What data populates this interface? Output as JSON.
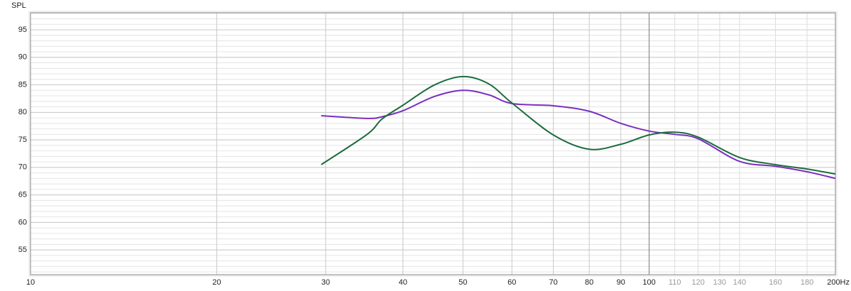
{
  "chart_data": {
    "type": "line",
    "y_label": "SPL",
    "x_scale": "log",
    "grid": true,
    "xlim": [
      10,
      200
    ],
    "ylim": [
      50.5,
      98.1
    ],
    "yticks": [
      55,
      60,
      65,
      70,
      75,
      80,
      85,
      90,
      95
    ],
    "xticks": [
      10,
      20,
      30,
      40,
      50,
      60,
      70,
      80,
      90,
      100,
      {
        "value": 200,
        "label": "200Hz"
      }
    ],
    "xticks_minor": [
      110,
      120,
      130,
      140,
      160,
      180
    ],
    "x": [
      29.5,
      35,
      37,
      40,
      45,
      50,
      55,
      60,
      70,
      80,
      90,
      100,
      110,
      120,
      140,
      160,
      180,
      200
    ],
    "series": [
      {
        "color": "#7b2fbe",
        "values": [
          79.4,
          78.9,
          79.2,
          80.3,
          82.9,
          84.0,
          83.2,
          81.6,
          81.2,
          80.2,
          78.0,
          76.6,
          76.0,
          75.2,
          71.1,
          70.2,
          69.2,
          68.0
        ]
      },
      {
        "color": "#1b6b3d",
        "values": [
          70.5,
          76.0,
          78.8,
          81.3,
          85.0,
          86.5,
          85.2,
          81.7,
          75.9,
          73.3,
          74.2,
          75.9,
          76.4,
          75.5,
          71.8,
          70.5,
          69.7,
          68.8
        ]
      }
    ]
  }
}
